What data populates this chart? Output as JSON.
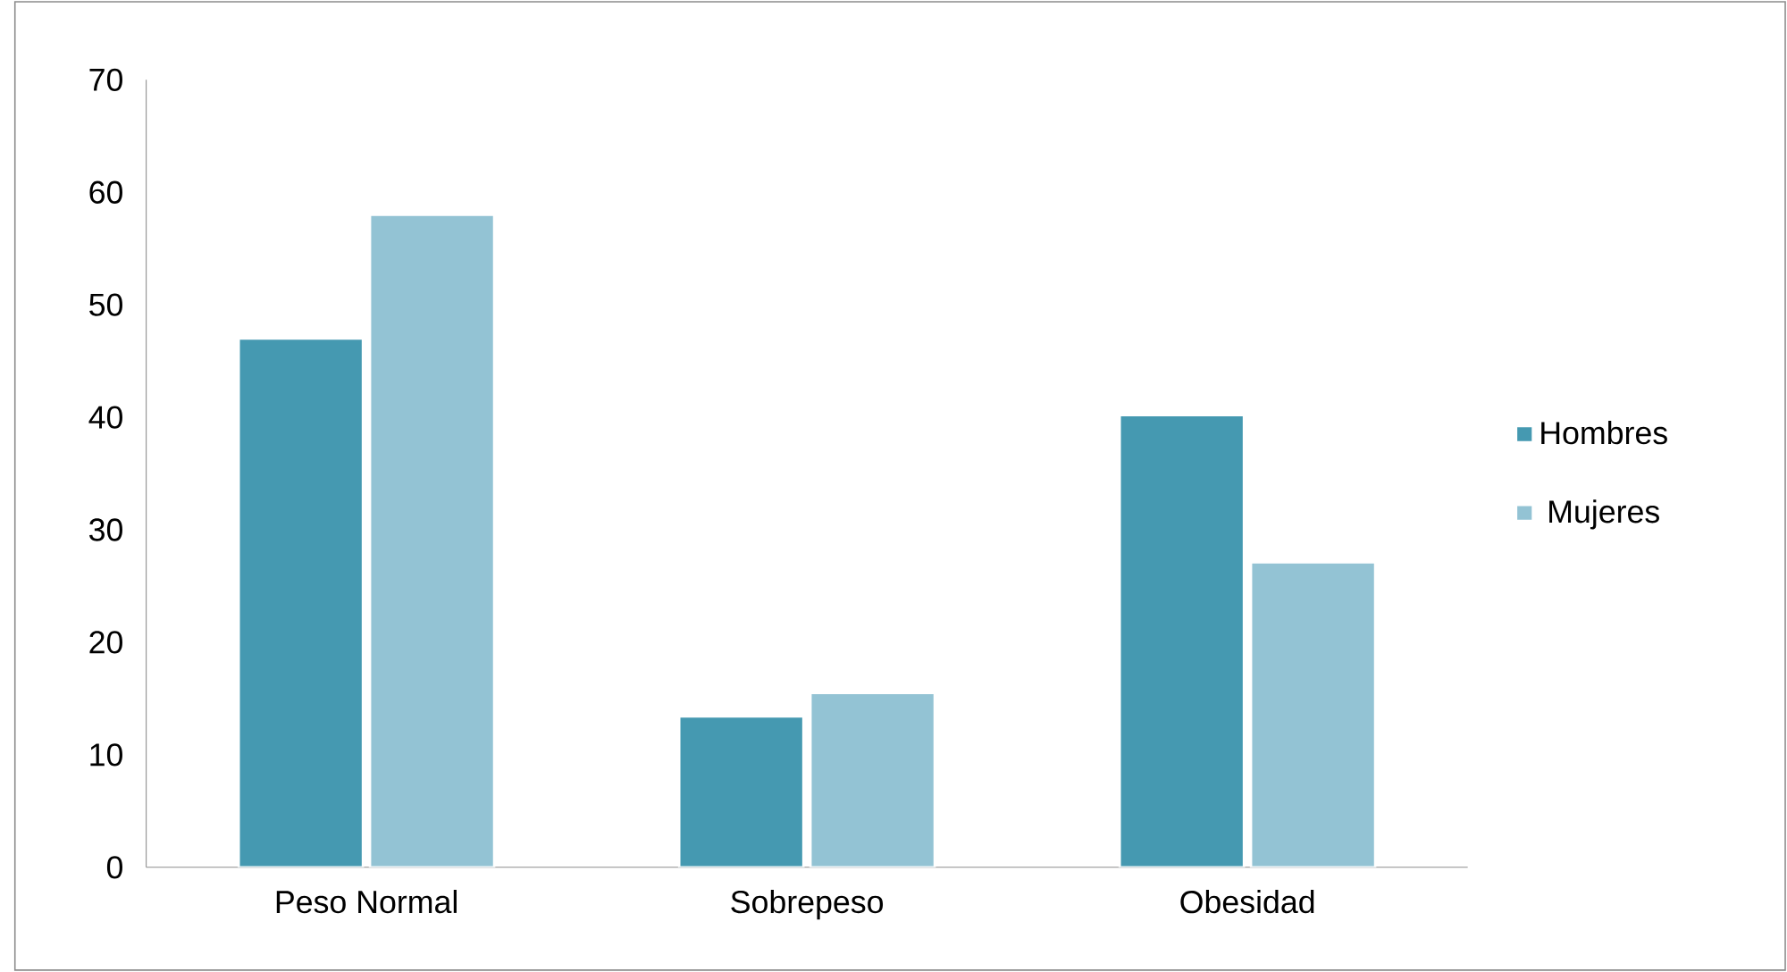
{
  "chart_data": {
    "type": "bar",
    "categories": [
      "Peso Normal",
      "Sobrepeso",
      "Obesidad"
    ],
    "series": [
      {
        "name": "Hombres",
        "color": "#4599b1",
        "values": [
          47,
          13.4,
          40.2
        ]
      },
      {
        "name": "Mujeres",
        "color": "#93c3d4",
        "values": [
          58,
          15.5,
          27.1
        ]
      }
    ],
    "ylim": [
      0,
      70
    ],
    "yticks": [
      0,
      10,
      20,
      30,
      40,
      50,
      60,
      70
    ],
    "grid": false,
    "legend": "right"
  }
}
